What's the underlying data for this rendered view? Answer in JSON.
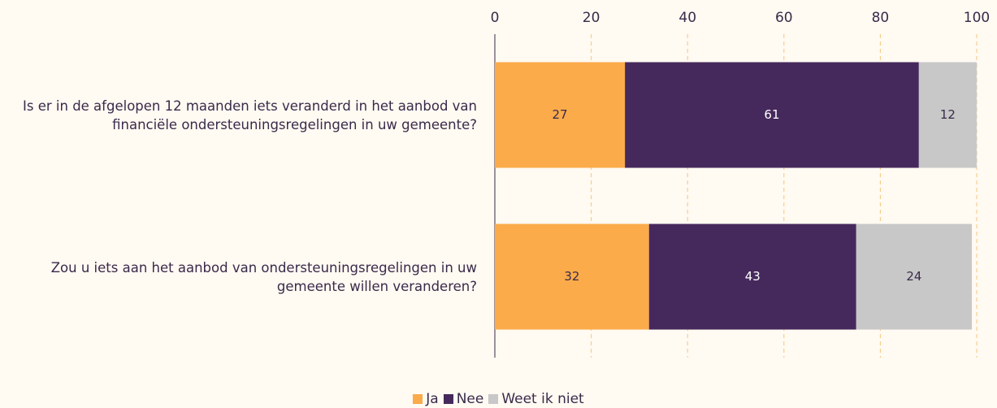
{
  "chart_data": {
    "type": "stacked_barh",
    "categories": [
      "Is er in de afgelopen 12 maanden iets veranderd in het aanbod van financiële ondersteuningsregelingen in uw gemeente?",
      "Zou u iets aan het aanbod van ondersteuningsregelingen in uw gemeente willen veranderen?"
    ],
    "series": [
      {
        "name": "Ja",
        "color": "#fbab4a",
        "values": [
          27,
          32
        ]
      },
      {
        "name": "Nee",
        "color": "#46295c",
        "values": [
          61,
          43
        ]
      },
      {
        "name": "Weet ik niet",
        "color": "#c8c8c8",
        "values": [
          12,
          24
        ]
      }
    ],
    "xlim": [
      0,
      100
    ],
    "xticks": [
      0,
      20,
      40,
      60,
      80,
      100
    ],
    "grid": true,
    "legend": "bottom"
  }
}
